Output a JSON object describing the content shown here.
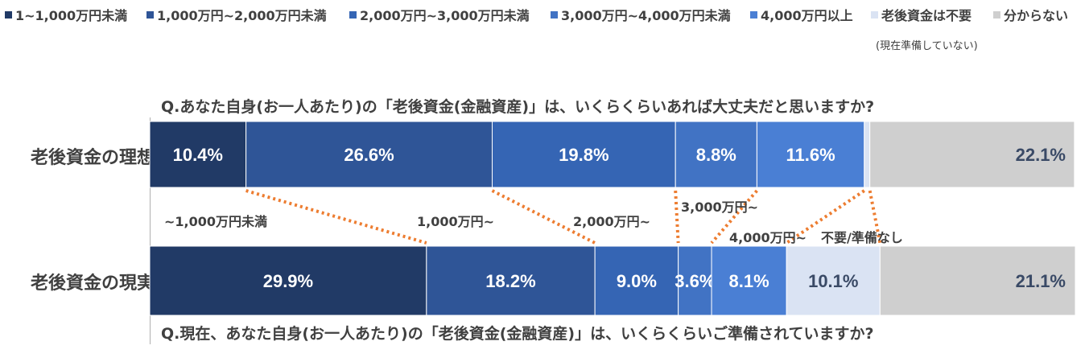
{
  "legend": {
    "items": [
      {
        "label": "1~1,000万円未満",
        "color": "#213a66"
      },
      {
        "label": "1,000万円~2,000万円未満",
        "color": "#2f5597"
      },
      {
        "label": "2,000万円~3,000万円未満",
        "color": "#3565b4"
      },
      {
        "label": "3,000万円~4,000万円未満",
        "color": "#4173c4"
      },
      {
        "label": "4,000万円以上",
        "color": "#4a7fd4"
      },
      {
        "label": "老後資金は不要",
        "color": "#dae3f3"
      },
      {
        "label": "分からない",
        "color": "#cfcfcf"
      }
    ],
    "note": "(現在準備していない)"
  },
  "question_top": "Q.あなた自身(お一人あたり)の「老後資金(金融資産)」は、いくらくらいあれば大丈夫だと思いますか?",
  "question_bottom": "Q.現在、あなた自身(お一人あたり)の「老後資金(金融資産)」は、いくらくらいご準備されていますか?",
  "annotations": {
    "a1": "~1,000万円未満",
    "a2": "1,000万円~",
    "a3": "2,000万円~",
    "a4": "3,000万円~",
    "a5": "4,000万円~",
    "a6": "不要/準備なし"
  },
  "chart_data": {
    "type": "bar",
    "orientation": "horizontal",
    "stacked": true,
    "normalized": true,
    "categories": [
      "老後資金の理想",
      "老後資金の現実"
    ],
    "series": [
      {
        "name": "1~1,000万円未満",
        "values": [
          10.4,
          29.9
        ],
        "labels": [
          "10.4%",
          "29.9%"
        ]
      },
      {
        "name": "1,000万円~2,000万円未満",
        "values": [
          26.6,
          18.2
        ],
        "labels": [
          "26.6%",
          "18.2%"
        ]
      },
      {
        "name": "2,000万円~3,000万円未満",
        "values": [
          19.8,
          9.0
        ],
        "labels": [
          "19.8%",
          "9.0%"
        ]
      },
      {
        "name": "3,000万円~4,000万円未満",
        "values": [
          8.8,
          3.6
        ],
        "labels": [
          "8.8%",
          "3.6%"
        ]
      },
      {
        "name": "4,000万円以上",
        "values": [
          11.6,
          8.1
        ],
        "labels": [
          "11.6%",
          "8.1%"
        ]
      },
      {
        "name": "老後資金は不要",
        "values": [
          0.6,
          10.1
        ],
        "labels": [
          "0.6%",
          "10.1%"
        ]
      },
      {
        "name": "分からない",
        "values": [
          22.1,
          21.1
        ],
        "labels": [
          "22.1%",
          "21.1%"
        ]
      }
    ],
    "xlim": [
      0,
      100
    ],
    "grid": false,
    "legend_position": "top"
  }
}
